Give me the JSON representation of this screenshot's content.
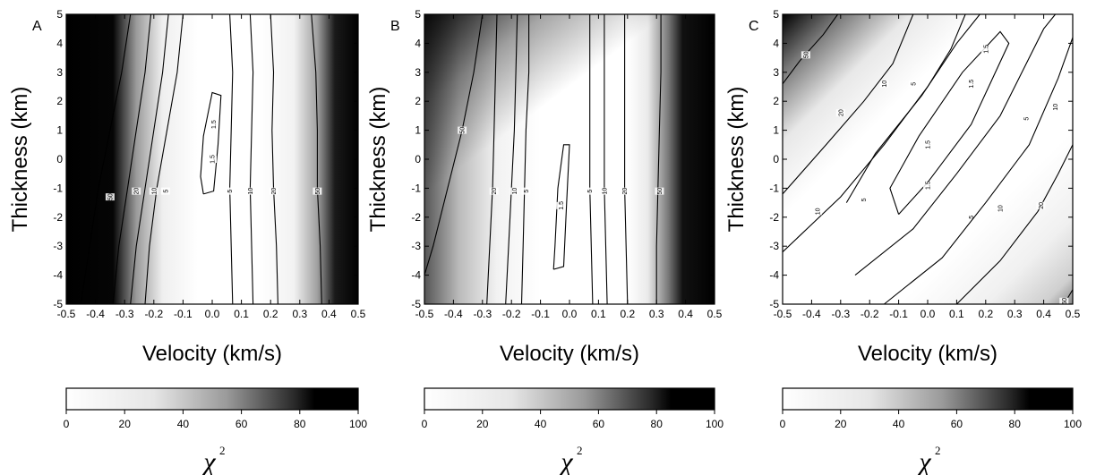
{
  "chart_data": [
    {
      "type": "heatmap",
      "panel_label": "A",
      "xlabel": "Velocity (km/s)",
      "ylabel": "Thickness (km)",
      "x_ticks": [
        "-0.5",
        "-0.4",
        "-0.3",
        "-0.2",
        "-0.1",
        "0.0",
        "0.1",
        "0.2",
        "0.3",
        "0.4",
        "0.5"
      ],
      "y_ticks": [
        "5",
        "4",
        "3",
        "2",
        "1",
        "0",
        "-1",
        "-2",
        "-3",
        "-4",
        "-5"
      ],
      "xlim": [
        -0.5,
        0.5
      ],
      "ylim": [
        -5,
        5
      ],
      "colorbar": {
        "label": "χ",
        "label_sup": "2",
        "min": 0,
        "max": 100,
        "ticks": [
          "0",
          "20",
          "40",
          "60",
          "80",
          "100"
        ],
        "colors": [
          "#ffffff",
          "#000000"
        ]
      },
      "contours": [
        {
          "level": "1.5",
          "points": [
            [
              -0.03,
              -1.2
            ],
            [
              0.005,
              -1.1
            ],
            [
              0.02,
              0.5
            ],
            [
              0.03,
              2.2
            ],
            [
              0.0,
              2.3
            ],
            [
              -0.03,
              0.8
            ],
            [
              -0.04,
              -0.6
            ],
            [
              -0.03,
              -1.2
            ]
          ],
          "label_at": [
            0.0,
            0.0
          ]
        },
        {
          "level": "1.5",
          "points": [],
          "label_at": [
            0.005,
            1.2
          ]
        },
        {
          "level": "5",
          "points": [
            [
              -0.1,
              5
            ],
            [
              -0.12,
              3
            ],
            [
              -0.155,
              1
            ],
            [
              -0.19,
              -1
            ],
            [
              -0.215,
              -3
            ],
            [
              -0.23,
              -5
            ]
          ],
          "label_at": [
            -0.16,
            -1.1
          ]
        },
        {
          "level": "5",
          "points": [
            [
              0.06,
              5
            ],
            [
              0.07,
              3
            ],
            [
              0.065,
              1
            ],
            [
              0.06,
              -1
            ],
            [
              0.065,
              -3
            ],
            [
              0.07,
              -5
            ]
          ],
          "label_at": [
            0.06,
            -1.1
          ]
        },
        {
          "level": "10",
          "points": [
            [
              -0.15,
              5
            ],
            [
              -0.17,
              3
            ],
            [
              -0.2,
              1
            ],
            [
              -0.23,
              -1
            ],
            [
              -0.26,
              -3
            ],
            [
              -0.28,
              -5
            ]
          ],
          "label_at": [
            -0.2,
            -1.1
          ]
        },
        {
          "level": "10",
          "points": [
            [
              0.13,
              5
            ],
            [
              0.14,
              3
            ],
            [
              0.135,
              1
            ],
            [
              0.13,
              -1
            ],
            [
              0.135,
              -3
            ],
            [
              0.14,
              -5
            ]
          ],
          "label_at": [
            0.13,
            -1.1
          ]
        },
        {
          "level": "20",
          "points": [
            [
              -0.21,
              5
            ],
            [
              -0.23,
              3
            ],
            [
              -0.26,
              1
            ],
            [
              -0.29,
              -1
            ],
            [
              -0.32,
              -3
            ],
            [
              -0.34,
              -5
            ]
          ],
          "label_at": [
            -0.26,
            -1.1
          ]
        },
        {
          "level": "20",
          "points": [
            [
              0.2,
              5
            ],
            [
              0.21,
              3
            ],
            [
              0.205,
              1
            ],
            [
              0.21,
              -1
            ],
            [
              0.22,
              -3
            ],
            [
              0.225,
              -5
            ]
          ],
          "label_at": [
            0.21,
            -1.1
          ]
        },
        {
          "level": "50",
          "points": [
            [
              -0.28,
              5
            ],
            [
              -0.31,
              3
            ],
            [
              -0.35,
              1
            ],
            [
              -0.39,
              -1
            ],
            [
              -0.42,
              -3
            ],
            [
              -0.45,
              -5
            ]
          ],
          "label_at": [
            -0.35,
            -1.3
          ]
        },
        {
          "level": "50",
          "points": [
            [
              0.34,
              5
            ],
            [
              0.355,
              3
            ],
            [
              0.36,
              1
            ],
            [
              0.36,
              -1
            ],
            [
              0.37,
              -3
            ],
            [
              0.375,
              -5
            ]
          ],
          "label_at": [
            0.36,
            -1.1
          ]
        }
      ]
    },
    {
      "type": "heatmap",
      "panel_label": "B",
      "xlabel": "Velocity (km/s)",
      "ylabel": "Thickness (km)",
      "x_ticks": [
        "-0.5",
        "-0.4",
        "-0.3",
        "-0.2",
        "-0.1",
        "0.0",
        "0.1",
        "0.2",
        "0.3",
        "0.4",
        "0.5"
      ],
      "y_ticks": [
        "5",
        "4",
        "3",
        "2",
        "1",
        "0",
        "-1",
        "-2",
        "-3",
        "-4",
        "-5"
      ],
      "xlim": [
        -0.5,
        0.5
      ],
      "ylim": [
        -5,
        5
      ],
      "colorbar": {
        "label": "χ",
        "label_sup": "2",
        "min": 0,
        "max": 100,
        "ticks": [
          "0",
          "20",
          "40",
          "60",
          "80",
          "100"
        ],
        "colors": [
          "#ffffff",
          "#000000"
        ]
      },
      "contours": [
        {
          "level": "1.5",
          "points": [
            [
              -0.055,
              -3.8
            ],
            [
              -0.02,
              -3.7
            ],
            [
              -0.01,
              -1.5
            ],
            [
              0.0,
              0.5
            ],
            [
              -0.02,
              0.5
            ],
            [
              -0.04,
              -1.0
            ],
            [
              -0.05,
              -3.0
            ],
            [
              -0.055,
              -3.8
            ]
          ],
          "label_at": [
            -0.03,
            -1.6
          ]
        },
        {
          "level": "5",
          "points": [
            [
              -0.14,
              5
            ],
            [
              -0.14,
              3
            ],
            [
              -0.15,
              1
            ],
            [
              -0.155,
              -1
            ],
            [
              -0.16,
              -3
            ],
            [
              -0.165,
              -5
            ]
          ],
          "label_at": [
            -0.15,
            -1.1
          ]
        },
        {
          "level": "5",
          "points": [
            [
              0.07,
              5
            ],
            [
              0.07,
              3
            ],
            [
              0.07,
              1
            ],
            [
              0.07,
              -1
            ],
            [
              0.075,
              -3
            ],
            [
              0.08,
              -5
            ]
          ],
          "label_at": [
            0.07,
            -1.1
          ]
        },
        {
          "level": "10",
          "points": [
            [
              -0.18,
              5
            ],
            [
              -0.185,
              3
            ],
            [
              -0.19,
              1
            ],
            [
              -0.2,
              -1
            ],
            [
              -0.21,
              -3
            ],
            [
              -0.22,
              -5
            ]
          ],
          "label_at": [
            -0.19,
            -1.1
          ]
        },
        {
          "level": "10",
          "points": [
            [
              0.12,
              5
            ],
            [
              0.12,
              3
            ],
            [
              0.12,
              1
            ],
            [
              0.12,
              -1
            ],
            [
              0.125,
              -3
            ],
            [
              0.13,
              -5
            ]
          ],
          "label_at": [
            0.12,
            -1.1
          ]
        },
        {
          "level": "20",
          "points": [
            [
              -0.25,
              5
            ],
            [
              -0.255,
              3
            ],
            [
              -0.26,
              1
            ],
            [
              -0.265,
              -1
            ],
            [
              -0.275,
              -3
            ],
            [
              -0.285,
              -5
            ]
          ],
          "label_at": [
            -0.26,
            -1.1
          ]
        },
        {
          "level": "20",
          "points": [
            [
              0.19,
              5
            ],
            [
              0.19,
              3
            ],
            [
              0.19,
              1
            ],
            [
              0.19,
              -1
            ],
            [
              0.195,
              -3
            ],
            [
              0.2,
              -5
            ]
          ],
          "label_at": [
            0.19,
            -1.1
          ]
        },
        {
          "level": "50",
          "points": [
            [
              -0.3,
              5
            ],
            [
              -0.33,
              3
            ],
            [
              -0.37,
              1
            ],
            [
              -0.42,
              -1
            ],
            [
              -0.47,
              -3
            ],
            [
              -0.5,
              -4
            ]
          ],
          "label_at": [
            -0.37,
            1.0
          ]
        },
        {
          "level": "50",
          "points": [
            [
              0.315,
              5
            ],
            [
              0.315,
              3
            ],
            [
              0.31,
              1
            ],
            [
              0.305,
              -1
            ],
            [
              0.3,
              -3
            ],
            [
              0.3,
              -5
            ]
          ],
          "label_at": [
            0.31,
            -1.1
          ]
        }
      ]
    },
    {
      "type": "heatmap",
      "panel_label": "C",
      "xlabel": "Velocity (km/s)",
      "ylabel": "Thickness (km)",
      "x_ticks": [
        "-0.5",
        "-0.4",
        "-0.3",
        "-0.2",
        "-0.1",
        "0.0",
        "0.1",
        "0.2",
        "0.3",
        "0.4",
        "0.5"
      ],
      "y_ticks": [
        "5",
        "4",
        "3",
        "2",
        "1",
        "0",
        "-1",
        "-2",
        "-3",
        "-4",
        "-5"
      ],
      "xlim": [
        -0.5,
        0.5
      ],
      "ylim": [
        -5,
        5
      ],
      "colorbar": {
        "label": "χ",
        "label_sup": "2",
        "min": 0,
        "max": 100,
        "ticks": [
          "0",
          "20",
          "40",
          "60",
          "80",
          "100"
        ],
        "colors": [
          "#ffffff",
          "#000000"
        ]
      },
      "contours": [
        {
          "level": "1.5",
          "points": [
            [
              -0.1,
              -1.9
            ],
            [
              0.0,
              -0.8
            ],
            [
              0.15,
              1.2
            ],
            [
              0.28,
              4.0
            ],
            [
              0.25,
              4.4
            ],
            [
              0.12,
              3.0
            ],
            [
              -0.03,
              0.8
            ],
            [
              -0.13,
              -1.0
            ],
            [
              -0.1,
              -1.9
            ]
          ],
          "label_at": [
            0.0,
            0.5
          ]
        },
        {
          "level": "1.5",
          "points": [],
          "label_at": [
            0.15,
            2.6
          ]
        },
        {
          "level": "1.5",
          "points": [],
          "label_at": [
            0.2,
            3.8
          ]
        },
        {
          "level": "1.5",
          "points": [],
          "label_at": [
            0.0,
            -0.9
          ]
        },
        {
          "level": "5",
          "points": [
            [
              -0.25,
              -4.0
            ],
            [
              -0.05,
              -2.4
            ],
            [
              0.1,
              -0.5
            ],
            [
              0.25,
              1.5
            ],
            [
              0.4,
              4.5
            ],
            [
              0.44,
              5
            ]
          ],
          "label_at": [
            0.15,
            -2.0
          ]
        },
        {
          "level": "5",
          "points": [
            [
              -0.28,
              -1.5
            ],
            [
              -0.18,
              0.2
            ],
            [
              -0.02,
              2.2
            ],
            [
              0.1,
              4.0
            ],
            [
              0.18,
              5
            ]
          ],
          "label_at": [
            -0.22,
            -1.4
          ]
        },
        {
          "level": "5",
          "points": [],
          "label_at": [
            -0.05,
            2.6
          ]
        },
        {
          "level": "5",
          "points": [],
          "label_at": [
            0.34,
            1.4
          ]
        },
        {
          "level": "10",
          "points": [
            [
              -0.5,
              -3.2
            ],
            [
              -0.3,
              -1.3
            ],
            [
              -0.15,
              0.5
            ],
            [
              0.0,
              2.5
            ],
            [
              0.08,
              3.8
            ],
            [
              0.13,
              5
            ]
          ],
          "label_at": [
            -0.38,
            -1.8
          ]
        },
        {
          "level": "10",
          "points": [
            [
              -0.15,
              -5
            ],
            [
              0.05,
              -3.4
            ],
            [
              0.2,
              -1.5
            ],
            [
              0.35,
              0.5
            ],
            [
              0.45,
              2.8
            ],
            [
              0.5,
              4.2
            ]
          ],
          "label_at": [
            0.25,
            -1.7
          ]
        },
        {
          "level": "10",
          "points": [],
          "label_at": [
            -0.15,
            2.6
          ]
        },
        {
          "level": "10",
          "points": [],
          "label_at": [
            0.44,
            1.8
          ]
        },
        {
          "level": "20",
          "points": [
            [
              -0.5,
              -1.2
            ],
            [
              -0.35,
              0.5
            ],
            [
              -0.22,
              2.0
            ],
            [
              -0.12,
              3.3
            ],
            [
              -0.05,
              5
            ]
          ],
          "label_at": [
            -0.3,
            1.6
          ]
        },
        {
          "level": "20",
          "points": [
            [
              0.1,
              -5
            ],
            [
              0.25,
              -3.5
            ],
            [
              0.38,
              -1.8
            ],
            [
              0.45,
              -0.5
            ],
            [
              0.5,
              0.5
            ]
          ],
          "label_at": [
            0.39,
            -1.6
          ]
        },
        {
          "level": "50",
          "points": [
            [
              -0.5,
              2.6
            ],
            [
              -0.44,
              3.4
            ],
            [
              -0.36,
              4.3
            ],
            [
              -0.31,
              5
            ]
          ],
          "label_at": [
            -0.42,
            3.6
          ]
        },
        {
          "level": "50",
          "points": [
            [
              0.47,
              -5
            ],
            [
              0.5,
              -4.5
            ]
          ],
          "label_at": [
            0.47,
            -4.9
          ]
        }
      ]
    }
  ]
}
